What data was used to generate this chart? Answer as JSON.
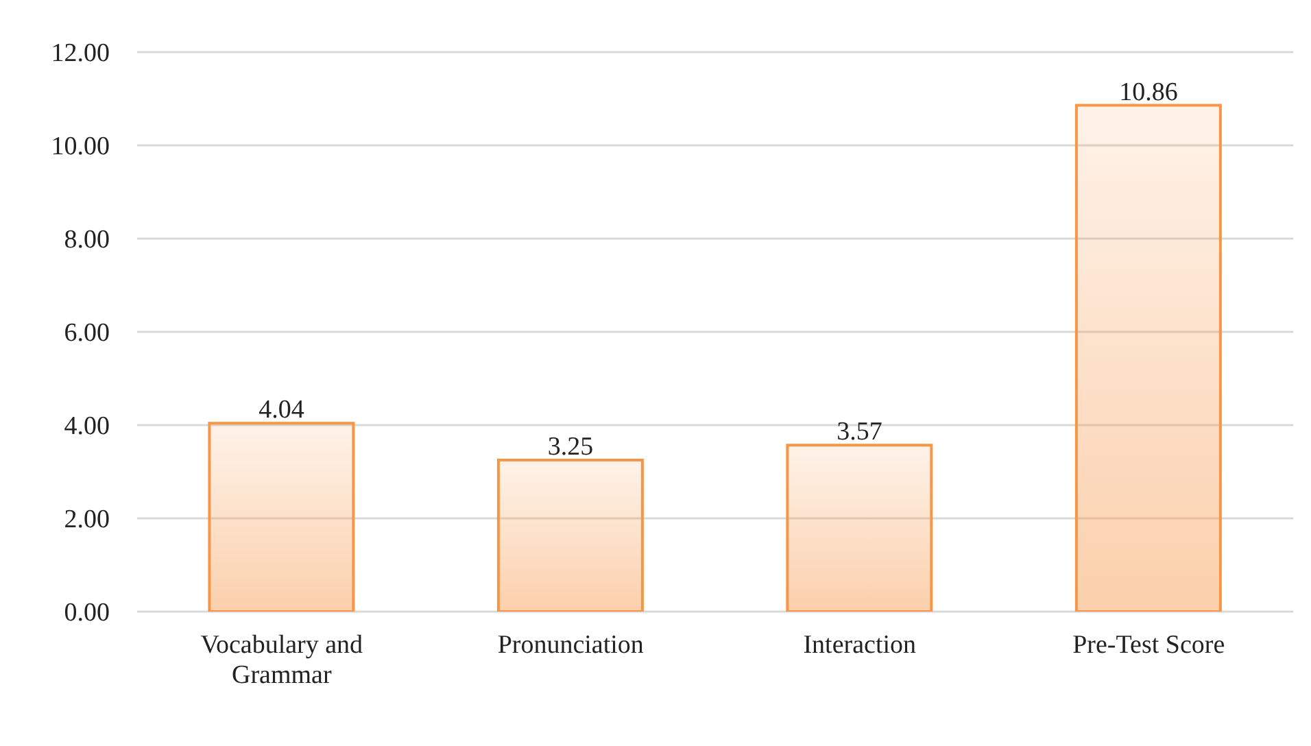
{
  "chart_data": {
    "type": "bar",
    "categories": [
      "Vocabulary and Grammar",
      "Pronunciation",
      "Interaction",
      "Pre-Test Score"
    ],
    "values": [
      4.04,
      3.25,
      3.57,
      10.86
    ],
    "color": "#f79646",
    "ylim": [
      0,
      12
    ],
    "yticks": [
      {
        "value": 0,
        "label": "0.00"
      },
      {
        "value": 2,
        "label": "2.00"
      },
      {
        "value": 4,
        "label": "4.00"
      },
      {
        "value": 6,
        "label": "6.00"
      },
      {
        "value": 8,
        "label": "8.00"
      },
      {
        "value": 10,
        "label": "10.00"
      },
      {
        "value": 12,
        "label": "12.00"
      }
    ],
    "grid": "y",
    "data_labels": true,
    "legend": false
  }
}
